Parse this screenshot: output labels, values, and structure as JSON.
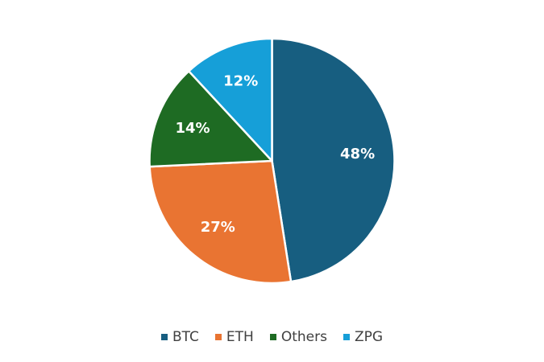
{
  "chart_data": {
    "type": "pie",
    "categories": [
      "BTC",
      "ETH",
      "Others",
      "ZPG"
    ],
    "values": [
      48,
      27,
      14,
      12
    ],
    "labels": [
      "48%",
      "27%",
      "14%",
      "12%"
    ],
    "colors": [
      "#175e80",
      "#e97432",
      "#1e6b23",
      "#169fd8"
    ],
    "legend_position": "bottom",
    "start_angle": "12 o'clock, clockwise"
  }
}
